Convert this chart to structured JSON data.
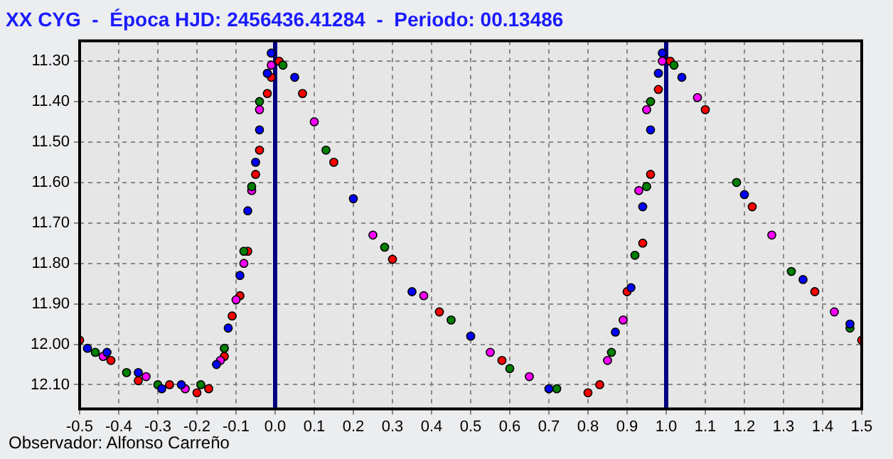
{
  "chart_data": {
    "type": "scatter",
    "title": "XX CYG  -  Época HJD: 2456436.41284  -  Periodo: 00.13486",
    "annotations": [
      "Observador: Alfonso Carreño"
    ],
    "xlim": [
      -0.5,
      1.5
    ],
    "xticks": [
      -0.5,
      -0.4,
      -0.3,
      -0.2,
      -0.1,
      {
        "value": 0,
        "label": "0.0"
      },
      0.1,
      0.2,
      0.3,
      0.4,
      0.5,
      0.6,
      0.7,
      0.8,
      0.9,
      {
        "value": 1,
        "label": "1.0"
      },
      1.1,
      1.2,
      1.3,
      1.4,
      1.5
    ],
    "ylim": [
      12.16,
      11.25
    ],
    "yticks": [
      {
        "value": 11.3,
        "label": "11.30"
      },
      {
        "value": 11.4,
        "label": "11.40"
      },
      {
        "value": 11.5,
        "label": "11.50"
      },
      {
        "value": 11.6,
        "label": "11.60"
      },
      {
        "value": 11.7,
        "label": "11.70"
      },
      {
        "value": 11.8,
        "label": "11.80"
      },
      {
        "value": 11.9,
        "label": "11.90"
      },
      {
        "value": 12,
        "label": "12.00"
      },
      {
        "value": 12.1,
        "label": "12.10"
      }
    ],
    "grid": true,
    "legend": false,
    "marker": "circle",
    "ref_lines": [
      {
        "axis": "x",
        "value": 0,
        "color": "#000080"
      },
      {
        "axis": "x",
        "value": 1,
        "color": "#000080"
      }
    ],
    "series": [
      {
        "color": "#0000ff",
        "x": [
          -0.48,
          -0.43,
          -0.35,
          -0.29,
          -0.24,
          -0.15,
          -0.12,
          -0.09,
          -0.07,
          -0.05,
          -0.04,
          -0.02,
          -0.01,
          0.05,
          0.2,
          0.35,
          0.5,
          0.7,
          0.87,
          0.91,
          0.94,
          0.96,
          0.98,
          0.99,
          1.04,
          1.2,
          1.35,
          1.47
        ],
        "values": [
          12.01,
          12.02,
          12.07,
          12.11,
          12.1,
          12.05,
          11.96,
          11.83,
          11.67,
          11.55,
          11.47,
          11.33,
          11.28,
          11.34,
          11.64,
          11.87,
          11.98,
          12.11,
          11.97,
          11.86,
          11.66,
          11.47,
          11.33,
          11.28,
          11.34,
          11.63,
          11.84,
          11.95
        ]
      },
      {
        "color": "#008000",
        "x": [
          -0.46,
          -0.38,
          -0.3,
          -0.19,
          -0.13,
          -0.08,
          -0.06,
          -0.04,
          0.02,
          0.13,
          0.28,
          0.45,
          0.6,
          0.72,
          0.86,
          0.92,
          0.95,
          0.96,
          1.02,
          1.18,
          1.32,
          1.47
        ],
        "values": [
          12.02,
          12.07,
          12.1,
          12.1,
          12.01,
          11.77,
          11.61,
          11.4,
          11.31,
          11.52,
          11.76,
          11.94,
          12.06,
          12.11,
          12.02,
          11.78,
          11.61,
          11.4,
          11.31,
          11.6,
          11.82,
          11.96
        ]
      },
      {
        "color": "#ff00ff",
        "x": [
          -0.44,
          -0.33,
          -0.23,
          -0.14,
          -0.1,
          -0.08,
          -0.06,
          -0.04,
          -0.01,
          0.1,
          0.25,
          0.38,
          0.55,
          0.65,
          0.85,
          0.89,
          0.93,
          0.95,
          0.99,
          1.08,
          1.27,
          1.43
        ],
        "values": [
          12.03,
          12.08,
          12.11,
          12.04,
          11.89,
          11.8,
          11.62,
          11.42,
          11.31,
          11.45,
          11.73,
          11.88,
          12.02,
          12.08,
          12.04,
          11.94,
          11.62,
          11.42,
          11.3,
          11.39,
          11.73,
          11.92
        ]
      },
      {
        "color": "#ff0000",
        "x": [
          -0.5,
          -0.42,
          -0.35,
          -0.27,
          -0.2,
          -0.17,
          -0.13,
          -0.11,
          -0.09,
          -0.07,
          -0.05,
          -0.04,
          -0.02,
          -0.01,
          0.01,
          0.07,
          0.15,
          0.3,
          0.42,
          0.58,
          0.8,
          0.83,
          0.9,
          0.94,
          0.96,
          0.98,
          1.01,
          1.1,
          1.22,
          1.38,
          1.5
        ],
        "values": [
          11.99,
          12.04,
          12.09,
          12.1,
          12.12,
          12.11,
          12.03,
          11.93,
          11.88,
          11.77,
          11.58,
          11.52,
          11.38,
          11.34,
          11.3,
          11.38,
          11.55,
          11.79,
          11.92,
          12.04,
          12.12,
          12.1,
          11.87,
          11.75,
          11.58,
          11.37,
          11.3,
          11.42,
          11.66,
          11.87,
          11.99
        ]
      }
    ]
  }
}
